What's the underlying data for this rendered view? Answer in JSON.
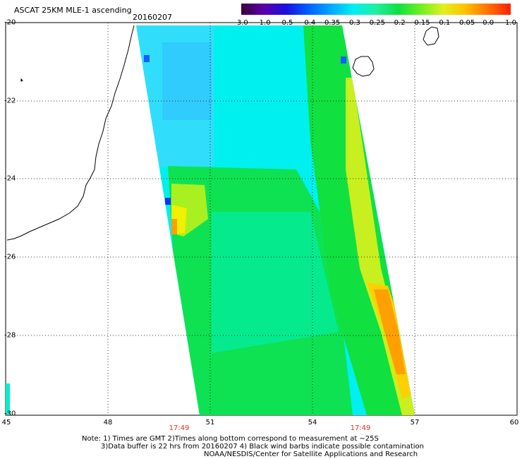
{
  "title": "ASCAT 25KM MLE-1 ascending",
  "date": "20160207",
  "colorbar": {
    "labels": [
      "-3.0",
      "-1.0",
      "-0.5",
      "-0.4",
      "-0.35",
      "-0.3",
      "-0.25",
      "-0.2",
      "-0.15",
      "-0.1",
      "-0.05",
      "0.0",
      "1.0"
    ],
    "colors": [
      "#3a0040",
      "#5a00a8",
      "#1a10e0",
      "#0060ff",
      "#00a8ff",
      "#00f0f0",
      "#20f0a0",
      "#10e040",
      "#70f020",
      "#e0f020",
      "#ffc000",
      "#ff7000",
      "#ff2000"
    ]
  },
  "axes": {
    "lat_labels": [
      "-20",
      "-22",
      "-24",
      "-26",
      "-28",
      "-30"
    ],
    "lon_labels": [
      "45",
      "48",
      "51",
      "54",
      "57",
      "60"
    ]
  },
  "times": [
    "17:49",
    "17:49"
  ],
  "notes": {
    "line1": "Note: 1) Times are GMT 2)Times along bottom correspond to measurement at ~25S",
    "line2": "3)Data buffer is 22 hrs from 20160207 4) Black wind barbs indicate possible contamination",
    "line3": "NOAA/NESDIS/Center for Satellite Applications and Research"
  },
  "palette": {
    "cyan": "#00f0f0",
    "aqua_green": "#20f0a0",
    "green": "#10e040",
    "yellow_green": "#a0f020",
    "yellow": "#f0f000",
    "orange": "#ffa000",
    "light_blue": "#40c8ff",
    "blue": "#1030ff"
  }
}
